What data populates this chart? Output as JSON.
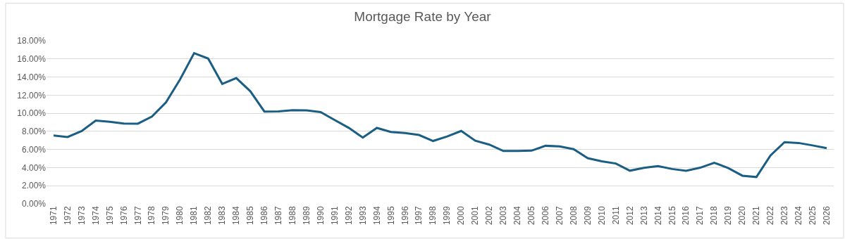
{
  "chart_data": {
    "type": "line",
    "title": "Mortgage Rate by Year",
    "categories": [
      "1971",
      "1972",
      "1973",
      "1974",
      "1975",
      "1976",
      "1977",
      "1978",
      "1979",
      "1980",
      "1981",
      "1982",
      "1983",
      "1984",
      "1985",
      "1986",
      "1987",
      "1988",
      "1989",
      "1990",
      "1991",
      "1992",
      "1993",
      "1994",
      "1995",
      "1996",
      "1997",
      "1998",
      "1999",
      "2000",
      "2001",
      "2002",
      "2003",
      "2004",
      "2005",
      "2006",
      "2007",
      "2008",
      "2009",
      "2010",
      "2011",
      "2012",
      "2013",
      "2014",
      "2015",
      "2016",
      "2017",
      "2018",
      "2019",
      "2020",
      "2021",
      "2022",
      "2023",
      "2024",
      "2025",
      "2026"
    ],
    "series": [
      {
        "color": "#1b5e84",
        "values": [
          7.54,
          7.38,
          8.04,
          9.19,
          9.05,
          8.87,
          8.85,
          9.64,
          11.2,
          13.74,
          16.63,
          16.04,
          13.24,
          13.88,
          12.43,
          10.19,
          10.21,
          10.34,
          10.32,
          10.13,
          9.25,
          8.39,
          7.31,
          8.38,
          7.93,
          7.81,
          7.6,
          6.94,
          7.44,
          8.05,
          6.97,
          6.54,
          5.83,
          5.84,
          5.87,
          6.41,
          6.34,
          6.03,
          5.04,
          4.69,
          4.45,
          3.66,
          3.98,
          4.17,
          3.85,
          3.65,
          3.99,
          4.54,
          3.94,
          3.11,
          2.96,
          5.34,
          6.81,
          6.72,
          6.45,
          6.15
        ]
      }
    ],
    "ylim": [
      0,
      18
    ],
    "yticks": [
      {
        "value": 0,
        "label": "0.00%"
      },
      {
        "value": 2,
        "label": "2.00%"
      },
      {
        "value": 4,
        "label": "4.00%"
      },
      {
        "value": 6,
        "label": "6.00%"
      },
      {
        "value": 8,
        "label": "8.00%"
      },
      {
        "value": 10,
        "label": "10.00%"
      },
      {
        "value": 12,
        "label": "12.00%"
      },
      {
        "value": 14,
        "label": "14.00%"
      },
      {
        "value": 16,
        "label": "16.00%"
      },
      {
        "value": 18,
        "label": "18.00%"
      }
    ],
    "grid": "y",
    "marker": "none",
    "line_style": "solid"
  }
}
